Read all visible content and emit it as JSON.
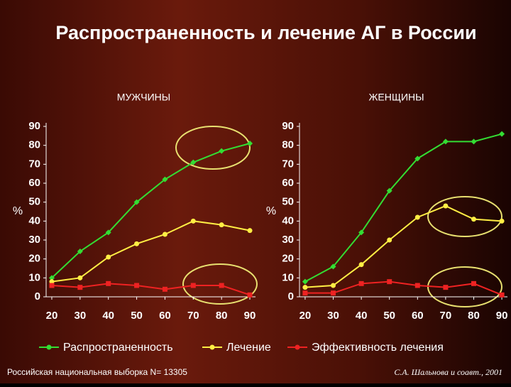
{
  "title": "Распространенность и лечение АГ в России",
  "note": "Российская национальная выборка N= 13305",
  "source": "С.А. Шальнова и соавт., 2001",
  "chart_data": [
    {
      "type": "line",
      "title": "МУЖЧИНЫ",
      "y_label": "%",
      "x": [
        20,
        30,
        40,
        50,
        60,
        70,
        80,
        90
      ],
      "xlim": [
        18,
        92
      ],
      "xticks": [
        20,
        30,
        40,
        50,
        60,
        70,
        80,
        90
      ],
      "ylim": [
        0,
        90
      ],
      "yticks": [
        0,
        10,
        20,
        30,
        40,
        50,
        60,
        70,
        80,
        90
      ],
      "series": [
        {
          "name": "Распространенность",
          "color": "#33dd33",
          "values": [
            10,
            24,
            34,
            50,
            62,
            71,
            77,
            81
          ]
        },
        {
          "name": "Лечение",
          "color": "#ffee44",
          "values": [
            8,
            10,
            21,
            28,
            33,
            40,
            38,
            35
          ]
        },
        {
          "name": "Эффективность лечения",
          "color": "#ee2222",
          "values": [
            6,
            5,
            7,
            6,
            4,
            6,
            6,
            1
          ]
        }
      ]
    },
    {
      "type": "line",
      "title": "ЖЕНЩИНЫ",
      "y_label": "%",
      "x": [
        20,
        30,
        40,
        50,
        60,
        70,
        80,
        90
      ],
      "xlim": [
        18,
        92
      ],
      "xticks": [
        20,
        30,
        40,
        50,
        60,
        70,
        80,
        90
      ],
      "ylim": [
        0,
        90
      ],
      "yticks": [
        0,
        10,
        20,
        30,
        40,
        50,
        60,
        70,
        80,
        90
      ],
      "series": [
        {
          "color": "#33dd33",
          "values": [
            8,
            16,
            34,
            56,
            73,
            82,
            82,
            86
          ]
        },
        {
          "color": "#ffee44",
          "values": [
            5,
            6,
            17,
            30,
            42,
            48,
            41,
            40
          ]
        },
        {
          "color": "#ee2222",
          "values": [
            2,
            2,
            7,
            8,
            6,
            5,
            7,
            1
          ]
        }
      ]
    }
  ]
}
